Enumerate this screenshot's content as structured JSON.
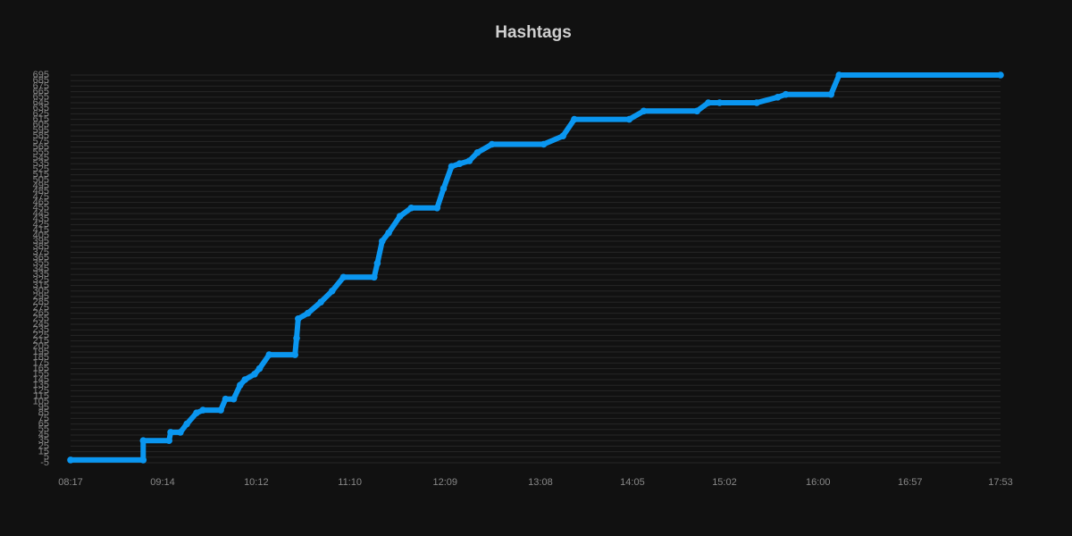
{
  "chart_data": {
    "type": "line",
    "title": "Hashtags",
    "x": [
      "08:17",
      "09:02",
      "09:02",
      "09:18",
      "09:19",
      "09:25",
      "09:29",
      "09:35",
      "09:39",
      "09:50",
      "09:53",
      "09:58",
      "10:02",
      "10:05",
      "10:11",
      "10:14",
      "10:20",
      "10:36",
      "10:37",
      "10:38",
      "10:44",
      "10:52",
      "10:59",
      "11:06",
      "11:25",
      "11:27",
      "11:30",
      "11:34",
      "11:41",
      "11:48",
      "12:04",
      "12:08",
      "12:13",
      "12:18",
      "12:24",
      "12:29",
      "12:38",
      "13:10",
      "13:22",
      "13:29",
      "14:03",
      "14:12",
      "14:45",
      "14:52",
      "14:59",
      "15:22",
      "15:35",
      "15:40",
      "16:08",
      "16:13",
      "17:53"
    ],
    "series": [
      {
        "name": "Hashtags",
        "color": "#0a96f0",
        "values": [
          0,
          0,
          35,
          35,
          50,
          50,
          65,
          85,
          90,
          90,
          110,
          110,
          135,
          145,
          155,
          165,
          190,
          190,
          220,
          255,
          265,
          285,
          305,
          330,
          330,
          355,
          395,
          410,
          440,
          455,
          455,
          490,
          530,
          535,
          540,
          555,
          570,
          570,
          585,
          615,
          615,
          630,
          630,
          645,
          645,
          645,
          655,
          660,
          660,
          695,
          695
        ]
      }
    ],
    "xlim": [
      "08:17",
      "17:53"
    ],
    "xticks": [
      "08:17",
      "09:14",
      "10:12",
      "11:10",
      "12:09",
      "13:08",
      "14:05",
      "15:02",
      "16:00",
      "16:57",
      "17:53"
    ],
    "ylim": [
      -5,
      695
    ],
    "yticks": [
      -5,
      5,
      15,
      25,
      35,
      45,
      55,
      65,
      75,
      85,
      95,
      105,
      115,
      125,
      135,
      145,
      155,
      165,
      175,
      185,
      195,
      205,
      215,
      225,
      235,
      245,
      255,
      265,
      275,
      285,
      295,
      305,
      315,
      325,
      335,
      345,
      355,
      365,
      375,
      385,
      395,
      405,
      415,
      425,
      435,
      445,
      455,
      465,
      475,
      485,
      495,
      505,
      515,
      525,
      535,
      545,
      555,
      565,
      575,
      585,
      595,
      605,
      615,
      625,
      635,
      645,
      655,
      665,
      675,
      685,
      695
    ],
    "grid": true
  }
}
